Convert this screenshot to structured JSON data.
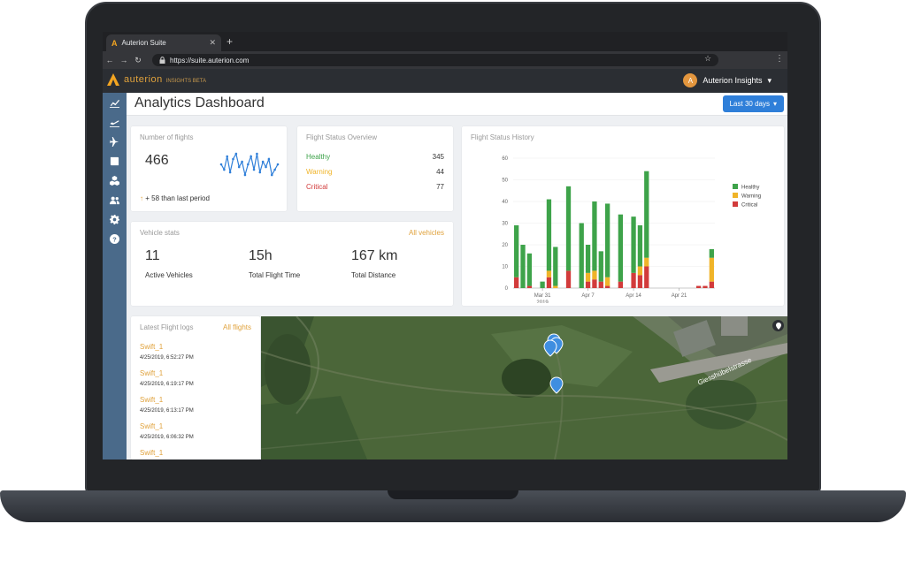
{
  "browser": {
    "tab_title": "Auterion Suite",
    "tab_close": "✕",
    "new_tab": "+",
    "url": "https://suite.auterion.com"
  },
  "header": {
    "brand_name": "auterion",
    "brand_sub": "INSIGHTS BETA",
    "avatar_letter": "A",
    "user_menu": "Auterion Insights"
  },
  "page": {
    "title": "Analytics Dashboard",
    "range_button": "Last 30 days"
  },
  "flights_card": {
    "title": "Number of flights",
    "value": "466",
    "delta_arrow": "↑",
    "delta_text": "+ 58 than last period",
    "sparkline": [
      12,
      10,
      15,
      9,
      14,
      16,
      11,
      13,
      8,
      12,
      15,
      10,
      16,
      9,
      13,
      11,
      14,
      8,
      10,
      12
    ]
  },
  "status_card": {
    "title": "Flight Status Overview",
    "rows": [
      {
        "label": "Healthy",
        "value": "345",
        "color": "#3ea34a"
      },
      {
        "label": "Warning",
        "value": "44",
        "color": "#f0b429"
      },
      {
        "label": "Critical",
        "value": "77",
        "color": "#d23b3b"
      }
    ]
  },
  "vehicle_card": {
    "title": "Vehicle stats",
    "link": "All vehicles",
    "stats": [
      {
        "value": "11",
        "label": "Active Vehicles"
      },
      {
        "value": "15h",
        "label": "Total Flight Time"
      },
      {
        "value": "167 km",
        "label": "Total Distance"
      }
    ]
  },
  "history_card": {
    "title": "Flight Status History"
  },
  "chart_data": {
    "type": "bar",
    "stacked": true,
    "ylim": [
      0,
      60
    ],
    "yticks": [
      0,
      10,
      20,
      30,
      40,
      50,
      60
    ],
    "xtick_labels": [
      {
        "label": "Mar 31",
        "sub": "2019",
        "index": 4
      },
      {
        "label": "Apr 7",
        "index": 11
      },
      {
        "label": "Apr 14",
        "index": 18
      },
      {
        "label": "Apr 21",
        "index": 25
      }
    ],
    "legend_position": "top-right",
    "series": [
      {
        "name": "Healthy",
        "color": "#3ea34a",
        "values": [
          24,
          20,
          15,
          0,
          3,
          33,
          18,
          0,
          39,
          0,
          30,
          13,
          32,
          14,
          34,
          0,
          31,
          0,
          26,
          19,
          40,
          0,
          0,
          0,
          0,
          0,
          0,
          0,
          0,
          0,
          4
        ]
      },
      {
        "name": "Warning",
        "color": "#f0b429",
        "values": [
          0,
          0,
          0,
          0,
          0,
          3,
          1,
          0,
          0,
          0,
          0,
          4,
          4,
          0,
          4,
          0,
          0,
          0,
          0,
          4,
          4,
          0,
          0,
          0,
          0,
          0,
          0,
          0,
          0,
          0,
          11
        ]
      },
      {
        "name": "Critical",
        "color": "#d23b3b",
        "values": [
          5,
          0,
          1,
          0,
          0,
          5,
          0,
          0,
          8,
          0,
          0,
          3,
          4,
          3,
          1,
          0,
          3,
          0,
          7,
          6,
          10,
          0,
          0,
          0,
          0,
          0,
          0,
          0,
          1,
          1,
          3
        ]
      }
    ]
  },
  "logs_card": {
    "title": "Latest Flight logs",
    "link": "All flights",
    "items": [
      {
        "name": "Swift_1",
        "date": "4/25/2019, 6:52:27 PM"
      },
      {
        "name": "Swift_1",
        "date": "4/25/2019, 6:19:17 PM"
      },
      {
        "name": "Swift_1",
        "date": "4/25/2019, 6:13:17 PM"
      },
      {
        "name": "Swift_1",
        "date": "4/25/2019, 6:06:32 PM"
      },
      {
        "name": "Swift_1",
        "date": ""
      }
    ]
  },
  "map": {
    "street_label": "Giesshübelstrasse"
  }
}
